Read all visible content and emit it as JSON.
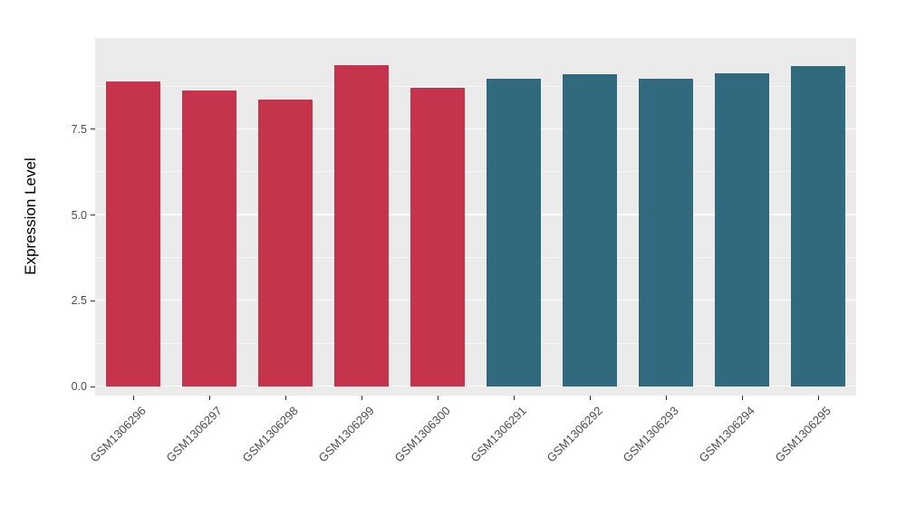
{
  "chart_data": {
    "type": "bar",
    "title": "",
    "xlabel": "",
    "ylabel": "Expression Level",
    "categories": [
      "GSM1306296",
      "GSM1306297",
      "GSM1306298",
      "GSM1306299",
      "GSM1306300",
      "GSM1306291",
      "GSM1306292",
      "GSM1306293",
      "GSM1306294",
      "GSM1306295"
    ],
    "values": [
      8.9,
      8.63,
      8.37,
      9.37,
      8.71,
      8.98,
      9.11,
      8.98,
      9.14,
      9.35
    ],
    "colors": [
      "#C5334D",
      "#C5334D",
      "#C5334D",
      "#C5334D",
      "#C5334D",
      "#31697E",
      "#31697E",
      "#31697E",
      "#31697E",
      "#31697E"
    ],
    "group_colors": {
      "red_group": "#C5334D",
      "teal_group": "#31697E"
    },
    "ytick_values": [
      0,
      2.5,
      5.0,
      7.5
    ],
    "ytick_labels": [
      "0.0",
      "2.5",
      "5.0",
      "7.5"
    ],
    "minor_gridlines": [
      1.25,
      3.75,
      6.25,
      8.75
    ],
    "ylim": [
      0,
      10.2
    ],
    "panel_background": "#EBEBEB",
    "gridline_color": "#FFFFFF",
    "axis_text_color": "#4D4D4D",
    "legend": "none",
    "grid": "on"
  }
}
